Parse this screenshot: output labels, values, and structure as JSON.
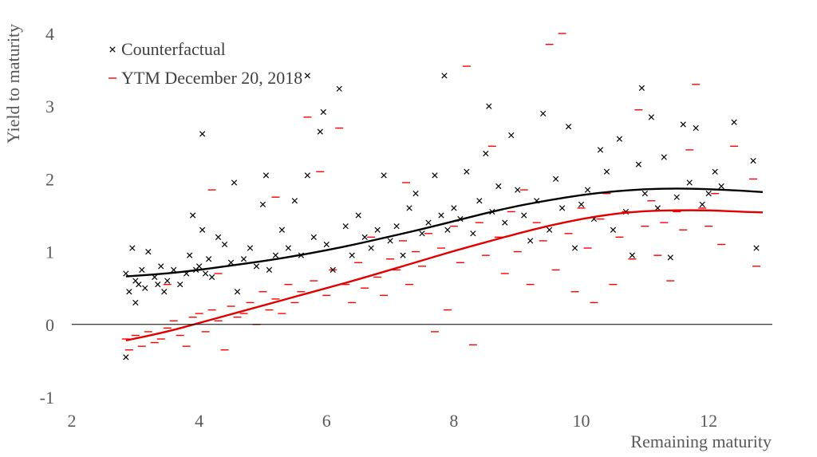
{
  "chart_data": {
    "type": "scatter",
    "title": "",
    "xlabel": "Remaining maturity",
    "ylabel": "Yield to maturity",
    "xlim": [
      2,
      13
    ],
    "ylim": [
      -1,
      4
    ],
    "xticks": [
      2,
      4,
      6,
      8,
      10,
      12
    ],
    "yticks": [
      -1,
      0,
      1,
      2,
      3,
      4
    ],
    "grid": false,
    "legend_position": "top-left",
    "zero_line": true,
    "series": [
      {
        "name": "Counterfactual",
        "marker": "x",
        "color": "#000000",
        "points": [
          [
            2.85,
            0.7
          ],
          [
            2.9,
            0.45
          ],
          [
            2.95,
            1.05
          ],
          [
            3.0,
            0.6
          ],
          [
            3.05,
            0.55
          ],
          [
            3.1,
            0.75
          ],
          [
            3.15,
            0.5
          ],
          [
            3.2,
            1.0
          ],
          [
            3.3,
            0.65
          ],
          [
            3.35,
            0.55
          ],
          [
            3.4,
            0.8
          ],
          [
            3.5,
            0.6
          ],
          [
            3.6,
            0.75
          ],
          [
            3.7,
            0.55
          ],
          [
            3.8,
            0.7
          ],
          [
            3.85,
            0.95
          ],
          [
            3.9,
            1.5
          ],
          [
            3.95,
            0.75
          ],
          [
            4.0,
            0.8
          ],
          [
            4.05,
            2.62
          ],
          [
            4.1,
            0.7
          ],
          [
            4.15,
            0.9
          ],
          [
            4.2,
            0.65
          ],
          [
            4.3,
            1.2
          ],
          [
            4.4,
            1.1
          ],
          [
            4.5,
            0.85
          ],
          [
            4.55,
            1.95
          ],
          [
            4.6,
            0.45
          ],
          [
            4.7,
            0.9
          ],
          [
            4.8,
            1.05
          ],
          [
            4.9,
            0.8
          ],
          [
            5.0,
            1.65
          ],
          [
            5.05,
            2.05
          ],
          [
            5.1,
            0.75
          ],
          [
            5.2,
            0.95
          ],
          [
            5.3,
            1.3
          ],
          [
            5.4,
            1.05
          ],
          [
            5.5,
            1.7
          ],
          [
            5.6,
            0.95
          ],
          [
            5.7,
            2.05
          ],
          [
            5.8,
            1.2
          ],
          [
            5.9,
            2.65
          ],
          [
            5.95,
            2.92
          ],
          [
            6.0,
            1.1
          ],
          [
            6.1,
            0.75
          ],
          [
            6.2,
            3.24
          ],
          [
            6.3,
            1.35
          ],
          [
            6.4,
            0.95
          ],
          [
            6.5,
            1.5
          ],
          [
            6.6,
            1.2
          ],
          [
            6.7,
            1.05
          ],
          [
            6.8,
            1.3
          ],
          [
            6.9,
            2.05
          ],
          [
            7.0,
            1.15
          ],
          [
            7.1,
            1.35
          ],
          [
            7.2,
            0.95
          ],
          [
            7.3,
            1.6
          ],
          [
            7.4,
            1.8
          ],
          [
            7.5,
            1.25
          ],
          [
            7.6,
            1.4
          ],
          [
            7.7,
            2.05
          ],
          [
            7.8,
            1.5
          ],
          [
            7.85,
            3.42
          ],
          [
            7.9,
            1.3
          ],
          [
            8.0,
            1.6
          ],
          [
            8.1,
            1.45
          ],
          [
            8.2,
            2.1
          ],
          [
            8.3,
            1.25
          ],
          [
            8.4,
            1.7
          ],
          [
            8.5,
            2.35
          ],
          [
            8.55,
            3.0
          ],
          [
            8.6,
            1.55
          ],
          [
            8.7,
            1.9
          ],
          [
            8.8,
            1.4
          ],
          [
            8.9,
            2.6
          ],
          [
            9.0,
            1.85
          ],
          [
            9.1,
            1.5
          ],
          [
            9.2,
            1.15
          ],
          [
            9.3,
            1.7
          ],
          [
            9.4,
            2.9
          ],
          [
            9.5,
            1.3
          ],
          [
            9.6,
            2.0
          ],
          [
            9.7,
            1.6
          ],
          [
            9.8,
            2.72
          ],
          [
            9.9,
            1.05
          ],
          [
            10.0,
            1.65
          ],
          [
            10.1,
            1.85
          ],
          [
            10.2,
            1.45
          ],
          [
            10.3,
            2.4
          ],
          [
            10.4,
            2.1
          ],
          [
            10.5,
            1.3
          ],
          [
            10.6,
            2.55
          ],
          [
            10.7,
            1.55
          ],
          [
            10.8,
            0.95
          ],
          [
            10.9,
            2.2
          ],
          [
            10.95,
            3.25
          ],
          [
            11.0,
            1.8
          ],
          [
            11.1,
            2.85
          ],
          [
            11.2,
            1.6
          ],
          [
            11.3,
            2.3
          ],
          [
            11.4,
            0.92
          ],
          [
            11.5,
            1.75
          ],
          [
            11.6,
            2.75
          ],
          [
            11.7,
            1.95
          ],
          [
            11.8,
            2.7
          ],
          [
            11.9,
            1.65
          ],
          [
            12.0,
            1.8
          ],
          [
            12.1,
            2.1
          ],
          [
            12.2,
            1.9
          ],
          [
            12.4,
            2.78
          ],
          [
            12.7,
            2.25
          ],
          [
            12.75,
            1.05
          ],
          [
            2.85,
            -0.45
          ],
          [
            3.0,
            0.3
          ],
          [
            3.45,
            0.45
          ],
          [
            4.05,
            1.3
          ],
          [
            5.7,
            3.42
          ]
        ]
      },
      {
        "name": "YTM December 20, 2018",
        "marker": "dash",
        "color": "#ff0000",
        "points": [
          [
            2.85,
            -0.2
          ],
          [
            2.9,
            -0.35
          ],
          [
            3.0,
            -0.15
          ],
          [
            3.1,
            -0.3
          ],
          [
            3.2,
            -0.1
          ],
          [
            3.3,
            -0.25
          ],
          [
            3.4,
            -0.2
          ],
          [
            3.5,
            -0.05
          ],
          [
            3.6,
            0.05
          ],
          [
            3.7,
            -0.15
          ],
          [
            3.8,
            -0.3
          ],
          [
            3.9,
            0.1
          ],
          [
            4.0,
            0.15
          ],
          [
            4.1,
            -0.1
          ],
          [
            4.2,
            0.2
          ],
          [
            4.3,
            0.05
          ],
          [
            4.4,
            -0.35
          ],
          [
            4.5,
            0.25
          ],
          [
            4.6,
            0.1
          ],
          [
            4.7,
            0.15
          ],
          [
            4.8,
            0.3
          ],
          [
            4.9,
            0.0
          ],
          [
            5.0,
            0.45
          ],
          [
            5.1,
            0.2
          ],
          [
            5.2,
            0.35
          ],
          [
            5.3,
            0.15
          ],
          [
            5.4,
            0.55
          ],
          [
            5.5,
            0.3
          ],
          [
            5.6,
            0.45
          ],
          [
            5.7,
            2.85
          ],
          [
            5.8,
            0.6
          ],
          [
            5.9,
            2.1
          ],
          [
            6.0,
            0.4
          ],
          [
            6.1,
            0.75
          ],
          [
            6.2,
            2.7
          ],
          [
            6.3,
            0.55
          ],
          [
            6.4,
            0.3
          ],
          [
            6.5,
            0.85
          ],
          [
            6.6,
            0.5
          ],
          [
            6.7,
            1.2
          ],
          [
            6.8,
            0.65
          ],
          [
            6.9,
            0.4
          ],
          [
            7.0,
            0.9
          ],
          [
            7.1,
            0.75
          ],
          [
            7.2,
            1.15
          ],
          [
            7.3,
            0.55
          ],
          [
            7.4,
            1.0
          ],
          [
            7.5,
            0.8
          ],
          [
            7.6,
            1.25
          ],
          [
            7.7,
            -0.1
          ],
          [
            7.8,
            1.05
          ],
          [
            7.9,
            0.2
          ],
          [
            8.0,
            1.35
          ],
          [
            8.1,
            0.85
          ],
          [
            8.2,
            3.55
          ],
          [
            8.3,
            -0.28
          ],
          [
            8.4,
            1.4
          ],
          [
            8.5,
            0.95
          ],
          [
            8.6,
            2.45
          ],
          [
            8.7,
            1.2
          ],
          [
            8.8,
            0.7
          ],
          [
            8.9,
            1.55
          ],
          [
            9.0,
            1.0
          ],
          [
            9.1,
            1.85
          ],
          [
            9.2,
            0.55
          ],
          [
            9.3,
            1.4
          ],
          [
            9.4,
            1.15
          ],
          [
            9.5,
            3.85
          ],
          [
            9.6,
            0.75
          ],
          [
            9.7,
            4.0
          ],
          [
            9.8,
            1.25
          ],
          [
            9.9,
            0.45
          ],
          [
            10.0,
            1.6
          ],
          [
            10.1,
            1.05
          ],
          [
            10.2,
            0.3
          ],
          [
            10.3,
            1.45
          ],
          [
            10.4,
            1.8
          ],
          [
            10.5,
            0.55
          ],
          [
            10.6,
            1.2
          ],
          [
            10.7,
            1.55
          ],
          [
            10.8,
            0.9
          ],
          [
            10.9,
            2.95
          ],
          [
            11.0,
            1.35
          ],
          [
            11.1,
            1.7
          ],
          [
            11.2,
            0.95
          ],
          [
            11.3,
            1.4
          ],
          [
            11.4,
            0.6
          ],
          [
            11.5,
            1.55
          ],
          [
            11.6,
            1.3
          ],
          [
            11.7,
            2.4
          ],
          [
            11.8,
            3.3
          ],
          [
            11.9,
            1.6
          ],
          [
            12.0,
            1.35
          ],
          [
            12.1,
            1.8
          ],
          [
            12.2,
            1.1
          ],
          [
            12.4,
            2.45
          ],
          [
            12.7,
            2.0
          ],
          [
            12.75,
            0.8
          ],
          [
            3.5,
            0.55
          ],
          [
            4.3,
            0.7
          ],
          [
            4.2,
            1.85
          ],
          [
            5.2,
            1.75
          ],
          [
            7.25,
            1.95
          ]
        ]
      }
    ],
    "fitted_lines": [
      {
        "name": "Counterfactual fit",
        "color": "#000000",
        "x": [
          2.85,
          3.5,
          4.0,
          4.5,
          5.0,
          5.5,
          6.0,
          6.5,
          7.0,
          7.5,
          8.0,
          8.5,
          9.0,
          9.5,
          10.0,
          10.5,
          11.0,
          11.5,
          12.0,
          12.5,
          12.85
        ],
        "y": [
          0.66,
          0.7,
          0.75,
          0.81,
          0.87,
          0.94,
          1.02,
          1.11,
          1.21,
          1.31,
          1.42,
          1.53,
          1.63,
          1.71,
          1.78,
          1.83,
          1.86,
          1.87,
          1.86,
          1.84,
          1.82
        ]
      },
      {
        "name": "YTM fit",
        "color": "#e00000",
        "x": [
          2.85,
          3.5,
          4.0,
          4.5,
          5.0,
          5.5,
          6.0,
          6.5,
          7.0,
          7.5,
          8.0,
          8.5,
          9.0,
          9.5,
          10.0,
          10.5,
          11.0,
          11.5,
          12.0,
          12.5,
          12.85
        ],
        "y": [
          -0.22,
          -0.1,
          0.02,
          0.14,
          0.26,
          0.38,
          0.5,
          0.62,
          0.75,
          0.88,
          1.01,
          1.13,
          1.25,
          1.36,
          1.45,
          1.52,
          1.56,
          1.57,
          1.57,
          1.55,
          1.54
        ]
      }
    ]
  }
}
